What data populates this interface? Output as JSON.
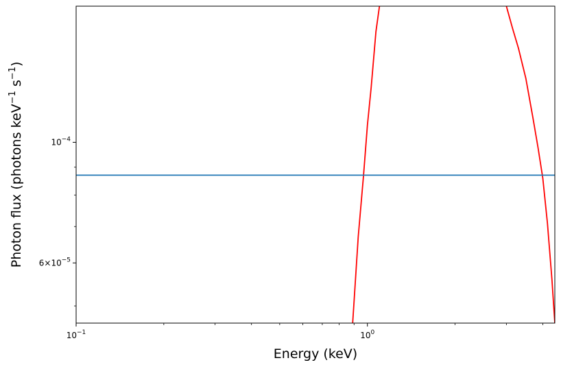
{
  "chart_data": {
    "type": "line",
    "title": "",
    "xlabel": "Energy (keV)",
    "ylabel": {
      "main": "Photon flux (photons keV",
      "exp1": "−1",
      "mid": " s",
      "exp2": "−1",
      "end": ")"
    },
    "x_scale": "log",
    "y_scale": "log",
    "xlim": [
      0.1,
      4.4
    ],
    "ylim": [
      4.65e-05,
      0.000178
    ],
    "grid": false,
    "legend": "none",
    "x_ticks": [
      {
        "value": 0.1,
        "base": "10",
        "exp": "−1"
      },
      {
        "value": 1.0,
        "base": "10",
        "exp": "0"
      }
    ],
    "y_ticks": [
      {
        "value": 0.0001,
        "coef": "",
        "base": "10",
        "exp": "−4"
      },
      {
        "value": 6e-05,
        "coef": "6×",
        "base": "10",
        "exp": "−5"
      }
    ],
    "colors": {
      "flat_series": "#1f77b4",
      "curve_series": "#ff0000",
      "axes": "#000000"
    },
    "series": [
      {
        "color": "#ff0000",
        "x": [
          0.89,
          0.93,
          0.97,
          1.0,
          1.03,
          1.07,
          1.1
        ],
        "y": [
          4.65e-05,
          6.7e-05,
          8.7e-05,
          0.0001075,
          0.000126,
          0.00016,
          0.000178
        ]
      },
      {
        "color": "#ff0000",
        "x": [
          3.0,
          3.15,
          3.3,
          3.5,
          3.7,
          3.85,
          4.0,
          4.15,
          4.3,
          4.4
        ],
        "y": [
          0.000178,
          0.000162,
          0.000149,
          0.000131,
          0.000111,
          9.8e-05,
          8.6e-05,
          7.1e-05,
          5.6e-05,
          4.65e-05
        ]
      },
      {
        "color": "#1f77b4",
        "x": [
          0.1,
          4.4
        ],
        "y": [
          8.7e-05,
          8.7e-05
        ]
      }
    ]
  }
}
